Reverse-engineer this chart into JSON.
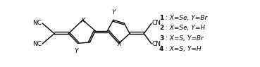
{
  "legend_lines": [
    {
      "bold": "1",
      "rest": " : X=Se, Y=Br"
    },
    {
      "bold": "2",
      "rest": " : X=Se, Y=H"
    },
    {
      "bold": "3",
      "rest": " : X=S, Y=Br"
    },
    {
      "bold": "4",
      "rest": " : X=S, Y=H"
    }
  ],
  "structure_color": "#000000",
  "bg_color": "#ffffff",
  "figsize": [
    3.69,
    0.95
  ],
  "dpi": 100
}
